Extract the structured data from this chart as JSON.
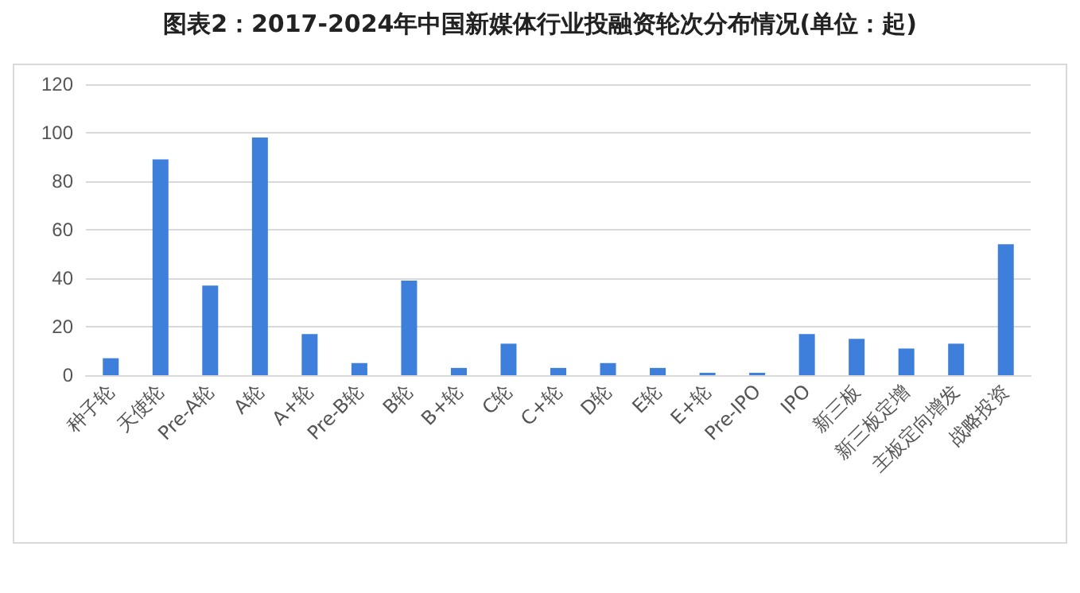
{
  "chart_data": {
    "type": "bar",
    "title": "图表2：2017-2024年中国新媒体行业投融资轮次分布情况(单位：起)",
    "categories": [
      "种子轮",
      "天使轮",
      "Pre-A轮",
      "A轮",
      "A+轮",
      "Pre-B轮",
      "B轮",
      "B+轮",
      "C轮",
      "C+轮",
      "D轮",
      "E轮",
      "E+轮",
      "Pre-IPO",
      "IPO",
      "新三板",
      "新三板定增",
      "主板定向增发",
      "战略投资"
    ],
    "values": [
      7,
      89,
      37,
      98,
      17,
      5,
      39,
      3,
      13,
      3,
      5,
      3,
      1,
      1,
      17,
      15,
      11,
      13,
      54
    ],
    "color": "#3f7fdc",
    "ylim": [
      0,
      120
    ],
    "yticks": [
      0,
      20,
      40,
      60,
      80,
      100,
      120
    ],
    "grid": "y"
  }
}
